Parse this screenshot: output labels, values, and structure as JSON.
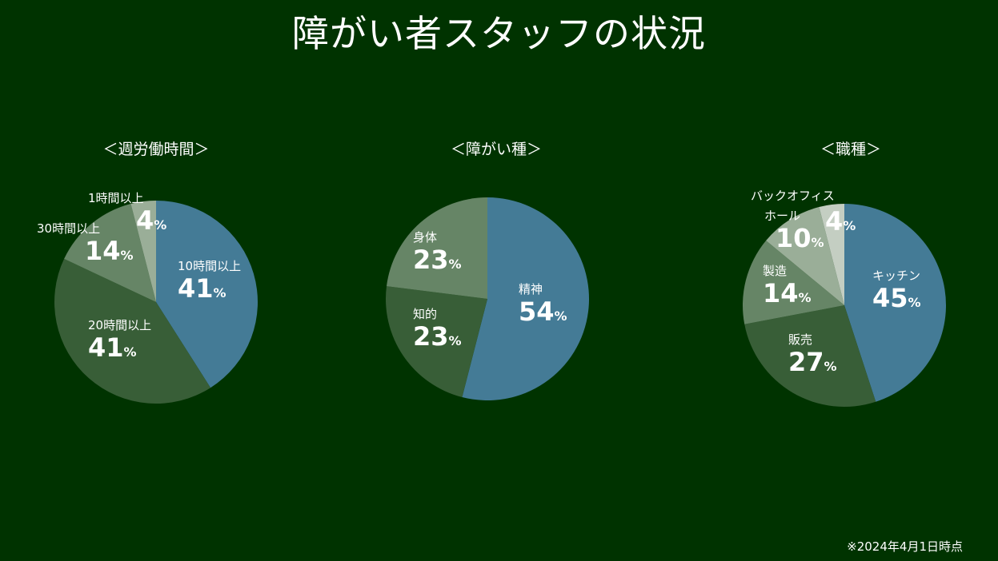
{
  "title": "障がい者スタッフの状況",
  "footnote": "※2024年4月1日時点",
  "colors": {
    "background": "#003300",
    "blue": "#447b96",
    "dark": "#385e37",
    "mid": "#668566",
    "light": "#9aae98",
    "pale": "#c4cec2"
  },
  "chart_data": [
    {
      "type": "pie",
      "title": "＜週労働時間＞",
      "slices": [
        {
          "label": "10時間以上",
          "value": 41,
          "unit": "%",
          "color": "#447b96"
        },
        {
          "label": "20時間以上",
          "value": 41,
          "unit": "%",
          "color": "#385e37"
        },
        {
          "label": "30時間以上",
          "value": 14,
          "unit": "%",
          "color": "#668566"
        },
        {
          "label": "1時間以上",
          "value": 4,
          "unit": "%",
          "color": "#9aae98"
        }
      ]
    },
    {
      "type": "pie",
      "title": "＜障がい種＞",
      "slices": [
        {
          "label": "精神",
          "value": 54,
          "unit": "%",
          "color": "#447b96"
        },
        {
          "label": "知的",
          "value": 23,
          "unit": "%",
          "color": "#385e37"
        },
        {
          "label": "身体",
          "value": 23,
          "unit": "%",
          "color": "#668566"
        }
      ]
    },
    {
      "type": "pie",
      "title": "＜職種＞",
      "slices": [
        {
          "label": "キッチン",
          "value": 45,
          "unit": "%",
          "color": "#447b96"
        },
        {
          "label": "販売",
          "value": 27,
          "unit": "%",
          "color": "#385e37"
        },
        {
          "label": "製造",
          "value": 14,
          "unit": "%",
          "color": "#668566"
        },
        {
          "label": "ホール",
          "value": 10,
          "unit": "%",
          "color": "#9aae98"
        },
        {
          "label": "バックオフィス",
          "value": 4,
          "unit": "%",
          "color": "#c4cec2"
        }
      ]
    }
  ]
}
